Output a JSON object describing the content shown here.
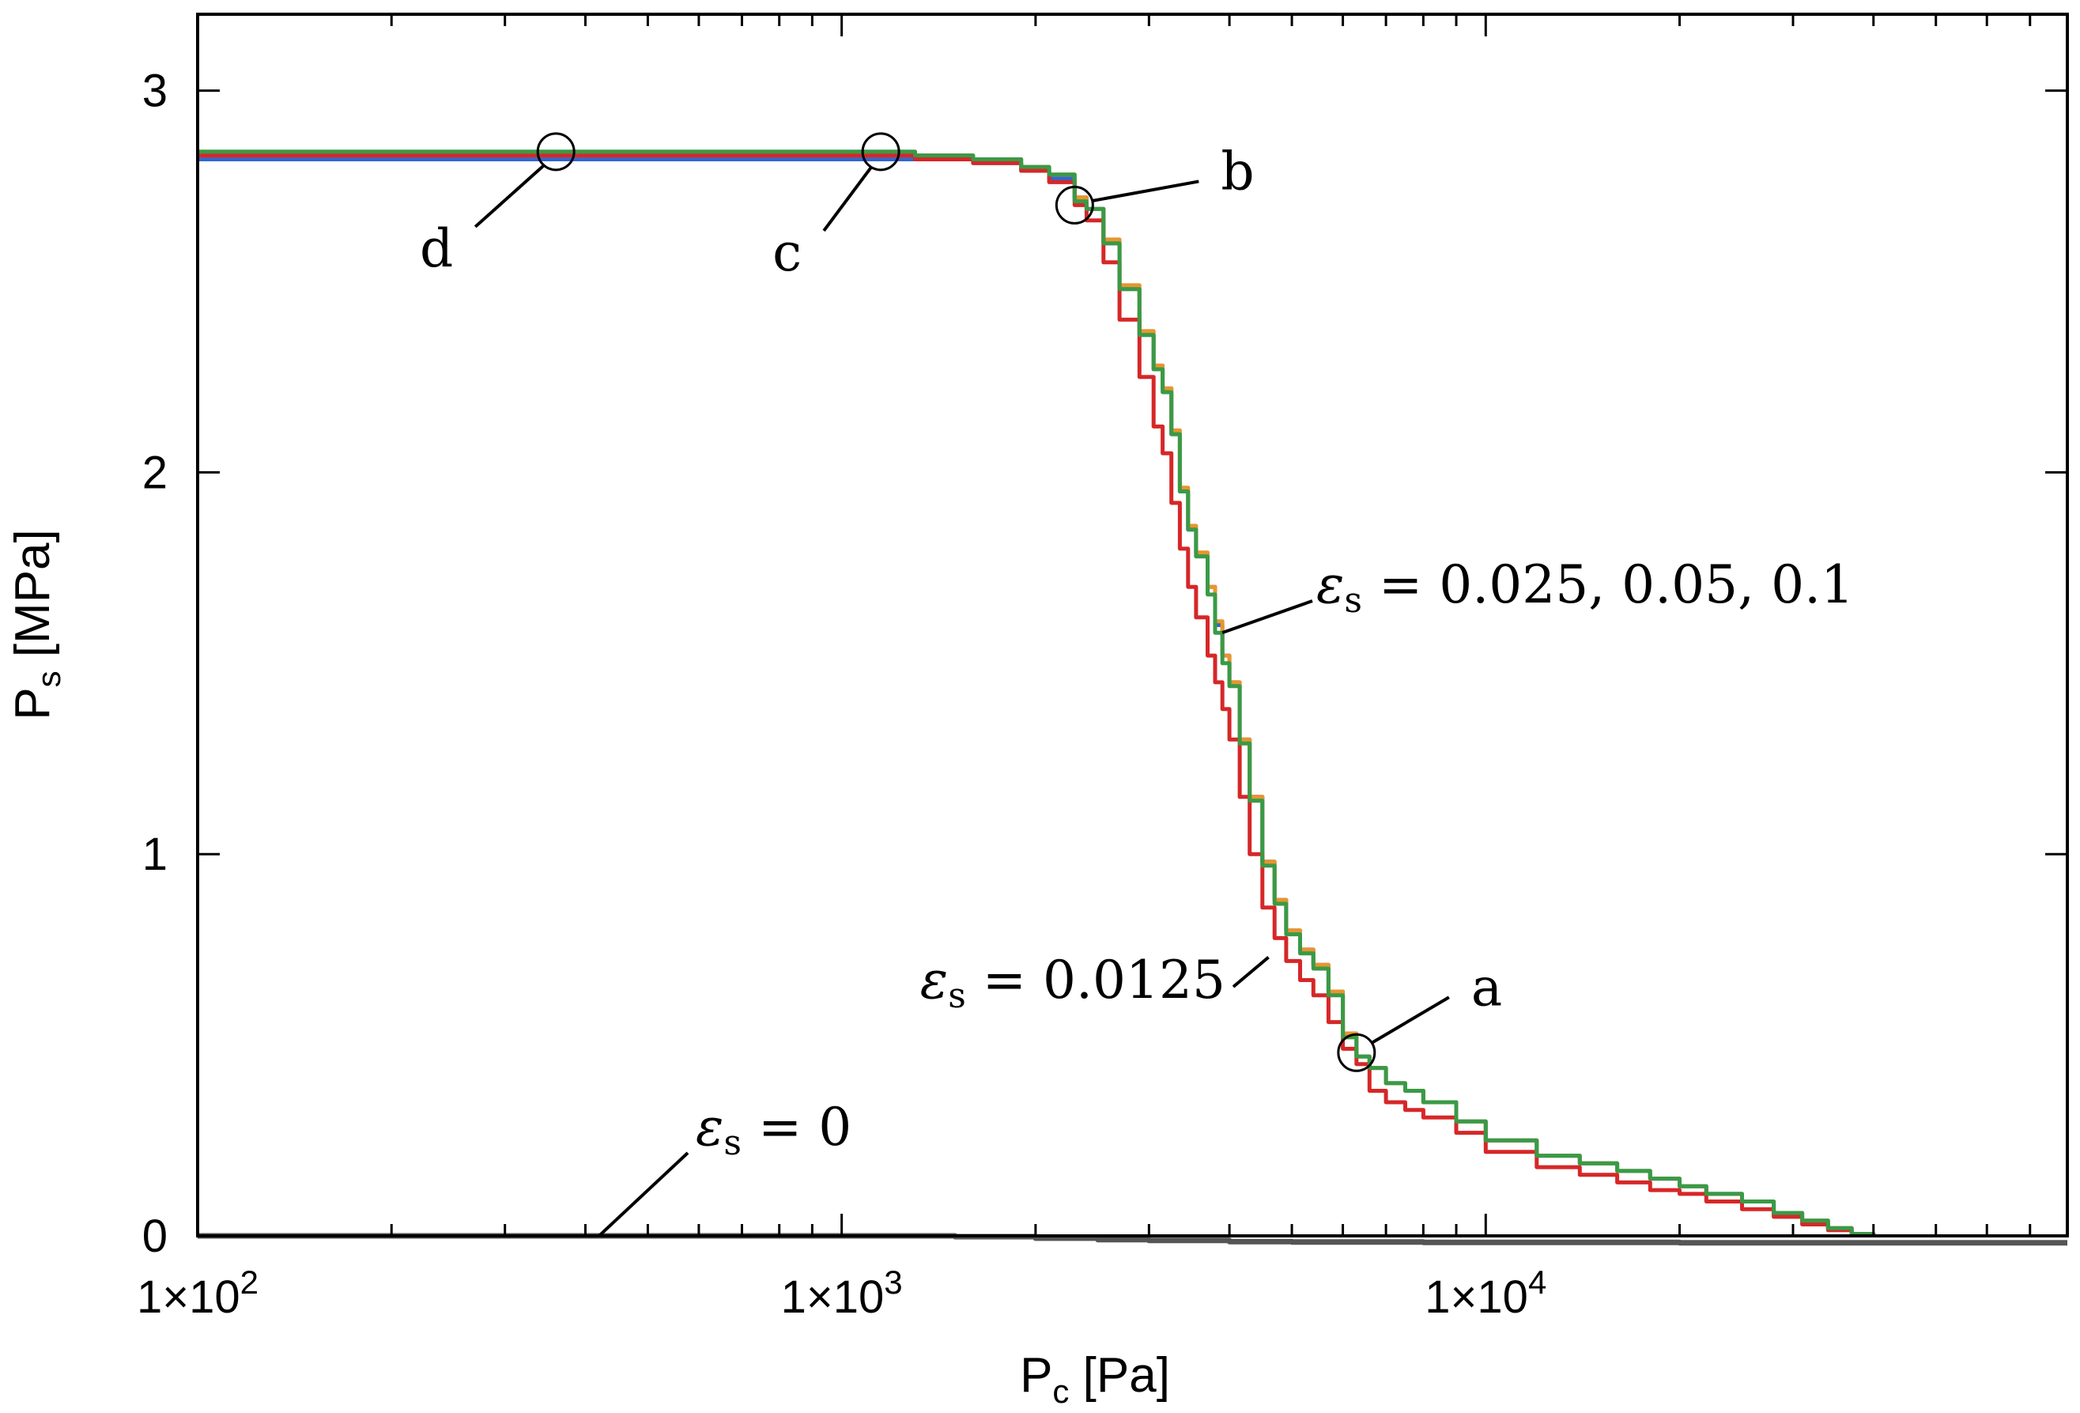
{
  "chart_data": {
    "type": "line",
    "title": "",
    "xlabel": "P_c [Pa]",
    "ylabel": "P_s [MPa]",
    "xscale": "log",
    "xlim": [
      100,
      80000
    ],
    "ylim": [
      0,
      3.2
    ],
    "grid": false,
    "x_tick_labels": [
      {
        "value": 100,
        "mantissa": "1×10",
        "exp": "2"
      },
      {
        "value": 1000,
        "mantissa": "1×10",
        "exp": "3"
      },
      {
        "value": 10000,
        "mantissa": "1×10",
        "exp": "4"
      }
    ],
    "y_tick_labels": [
      {
        "value": 0,
        "label": "0"
      },
      {
        "value": 1,
        "label": "1"
      },
      {
        "value": 2,
        "label": "2"
      },
      {
        "value": 3,
        "label": "3"
      }
    ],
    "x_label_parts": {
      "base": "P",
      "sub": "c",
      "rest": " [Pa]"
    },
    "y_label_parts": {
      "base": "P",
      "sub": "s",
      "rest": " [MPa]"
    },
    "series": [
      {
        "name": "eps_s = 0",
        "color": "#555555",
        "x": [
          100,
          200,
          500,
          1000,
          1500,
          2000,
          2500,
          3000,
          4000,
          5000,
          8000,
          20000,
          80000
        ],
        "y": [
          0.0,
          0.0,
          0.0,
          0.0,
          -0.002,
          -0.006,
          -0.01,
          -0.012,
          -0.015,
          -0.016,
          -0.017,
          -0.018,
          -0.018
        ]
      },
      {
        "name": "eps_s = 0.025",
        "color": "#3366cc",
        "x": [
          100,
          1000,
          1300,
          1600,
          1900,
          2100,
          2300,
          2400,
          2550,
          2700,
          2900,
          3050,
          3150,
          3250,
          3350,
          3450,
          3550,
          3700,
          3800,
          3900,
          4000,
          4150,
          4300,
          4500,
          4700,
          4900,
          5150,
          5400,
          5700,
          6000,
          6300,
          6600,
          7000,
          7500,
          8000,
          9000,
          10000,
          12000,
          14000,
          16000,
          18000,
          20000,
          22000,
          25000,
          28000,
          31000,
          34000,
          37000,
          40000
        ],
        "y": [
          2.82,
          2.82,
          2.82,
          2.81,
          2.79,
          2.77,
          2.72,
          2.69,
          2.6,
          2.48,
          2.36,
          2.27,
          2.22,
          2.1,
          1.95,
          1.85,
          1.78,
          1.7,
          1.6,
          1.52,
          1.45,
          1.3,
          1.15,
          0.98,
          0.88,
          0.8,
          0.75,
          0.71,
          0.64,
          0.53,
          0.47,
          0.44,
          0.4,
          0.38,
          0.35,
          0.3,
          0.25,
          0.21,
          0.19,
          0.17,
          0.15,
          0.13,
          0.11,
          0.09,
          0.06,
          0.04,
          0.02,
          0.005,
          0.0
        ]
      },
      {
        "name": "eps_s = 0.05",
        "color": "#e8952e",
        "x": [
          100,
          1000,
          1300,
          1600,
          1900,
          2100,
          2300,
          2400,
          2550,
          2700,
          2900,
          3050,
          3150,
          3250,
          3350,
          3450,
          3550,
          3700,
          3800,
          3900,
          4000,
          4150,
          4300,
          4500,
          4700,
          4900,
          5150,
          5400,
          5700,
          6000,
          6300,
          6600,
          7000,
          7500,
          8000,
          9000,
          10000,
          12000,
          14000,
          16000,
          18000,
          20000,
          22000,
          25000,
          28000,
          31000,
          34000,
          37000,
          40000
        ],
        "y": [
          2.83,
          2.83,
          2.83,
          2.82,
          2.8,
          2.78,
          2.72,
          2.69,
          2.61,
          2.49,
          2.37,
          2.28,
          2.22,
          2.11,
          1.96,
          1.86,
          1.79,
          1.7,
          1.61,
          1.52,
          1.45,
          1.3,
          1.15,
          0.98,
          0.88,
          0.8,
          0.75,
          0.71,
          0.64,
          0.53,
          0.47,
          0.44,
          0.4,
          0.38,
          0.35,
          0.3,
          0.25,
          0.21,
          0.19,
          0.17,
          0.15,
          0.13,
          0.11,
          0.09,
          0.06,
          0.04,
          0.02,
          0.005,
          0.0
        ]
      },
      {
        "name": "eps_s = 0.0125",
        "color": "#d62728",
        "x": [
          100,
          1000,
          1300,
          1600,
          1900,
          2100,
          2300,
          2400,
          2550,
          2700,
          2900,
          3050,
          3150,
          3250,
          3350,
          3450,
          3550,
          3700,
          3800,
          3900,
          4000,
          4150,
          4300,
          4500,
          4700,
          4900,
          5150,
          5400,
          5700,
          6000,
          6300,
          6600,
          7000,
          7500,
          8000,
          9000,
          10000,
          12000,
          14000,
          16000,
          18000,
          20000,
          22000,
          25000,
          28000,
          31000,
          34000,
          37000,
          40000
        ],
        "y": [
          2.83,
          2.83,
          2.82,
          2.81,
          2.79,
          2.76,
          2.7,
          2.66,
          2.55,
          2.4,
          2.25,
          2.12,
          2.05,
          1.92,
          1.8,
          1.7,
          1.62,
          1.52,
          1.45,
          1.38,
          1.3,
          1.15,
          1.0,
          0.86,
          0.78,
          0.72,
          0.67,
          0.63,
          0.56,
          0.49,
          0.45,
          0.38,
          0.35,
          0.33,
          0.31,
          0.27,
          0.22,
          0.18,
          0.16,
          0.14,
          0.12,
          0.11,
          0.09,
          0.07,
          0.05,
          0.03,
          0.015,
          0.005,
          0.0
        ]
      },
      {
        "name": "eps_s = 0.1",
        "color": "#3a9a46",
        "x": [
          100,
          1000,
          1300,
          1600,
          1900,
          2100,
          2300,
          2400,
          2550,
          2700,
          2900,
          3050,
          3150,
          3250,
          3350,
          3450,
          3550,
          3700,
          3800,
          3900,
          4000,
          4150,
          4300,
          4500,
          4700,
          4900,
          5150,
          5400,
          5700,
          6000,
          6300,
          6600,
          7000,
          7500,
          8000,
          9000,
          10000,
          12000,
          14000,
          16000,
          18000,
          20000,
          22000,
          25000,
          28000,
          31000,
          34000,
          37000,
          40000
        ],
        "y": [
          2.84,
          2.84,
          2.83,
          2.82,
          2.8,
          2.78,
          2.71,
          2.69,
          2.6,
          2.48,
          2.36,
          2.27,
          2.21,
          2.1,
          1.95,
          1.85,
          1.78,
          1.68,
          1.58,
          1.5,
          1.44,
          1.29,
          1.14,
          0.97,
          0.87,
          0.79,
          0.74,
          0.7,
          0.63,
          0.52,
          0.47,
          0.44,
          0.4,
          0.38,
          0.35,
          0.3,
          0.25,
          0.21,
          0.19,
          0.17,
          0.15,
          0.13,
          0.11,
          0.09,
          0.06,
          0.04,
          0.02,
          0.005,
          0.0
        ]
      }
    ],
    "markers": [
      {
        "label": "a",
        "x": 6300,
        "y": 0.48
      },
      {
        "label": "b",
        "x": 2300,
        "y": 2.7
      },
      {
        "label": "c",
        "x": 1150,
        "y": 2.84
      },
      {
        "label": "d",
        "x": 360,
        "y": 2.84
      }
    ],
    "annotations": [
      {
        "symbol": "ε",
        "sub": "s",
        "text": " = 0.025, 0.05, 0.1",
        "points_to": {
          "x": 3900,
          "y": 1.58
        }
      },
      {
        "symbol": "ε",
        "sub": "s",
        "text": " = 0.0125",
        "points_to": {
          "x": 4600,
          "y": 0.73
        }
      },
      {
        "symbol": "ε",
        "sub": "s",
        "text": " = 0",
        "points_to": {
          "x": 420,
          "y": 0.0
        }
      }
    ]
  }
}
